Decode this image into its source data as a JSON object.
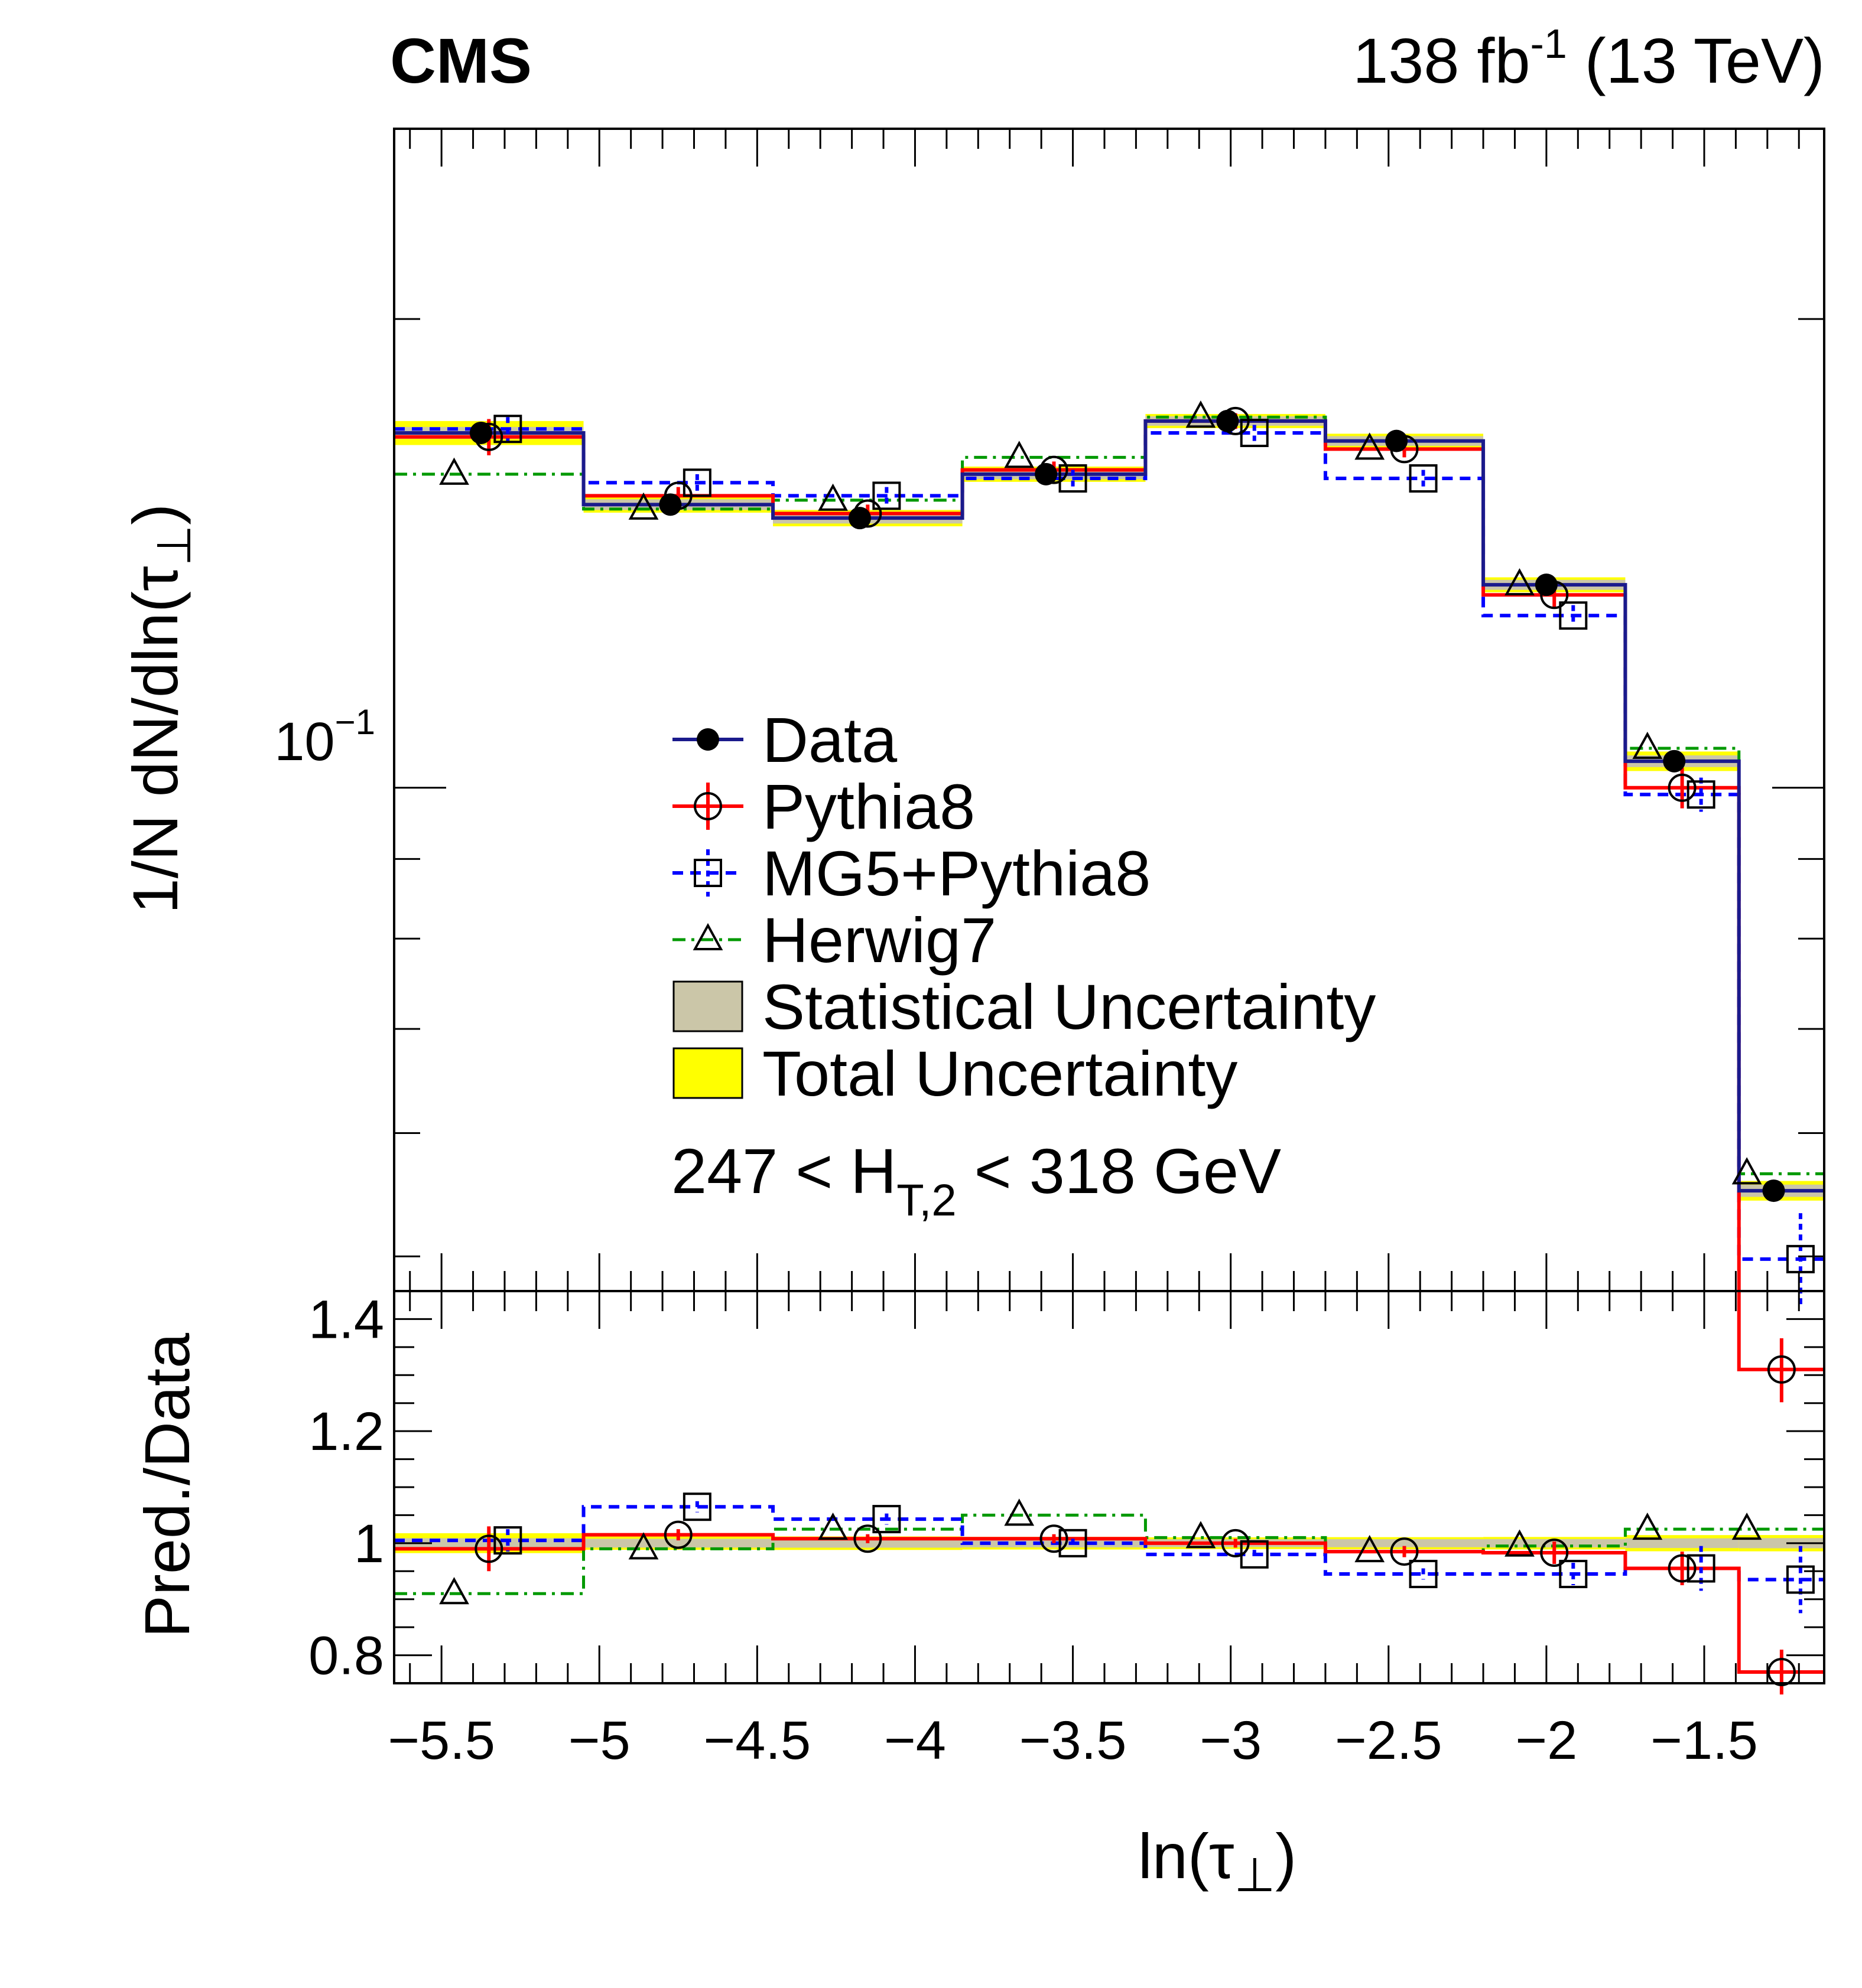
{
  "header": {
    "experiment": "CMS",
    "lumi_value": "138 fb",
    "lumi_exponent": "-1",
    "energy": "(13 TeV)"
  },
  "chart_data": {
    "type": "line",
    "style": "histogram-step",
    "title": "",
    "xlabel_main": "ln(τ",
    "xlabel_sub": "⊥",
    "xlabel_close": ")",
    "ylabel_main": "1/N dN/dln(τ",
    "ylabel_sub": "⊥",
    "ylabel_close": ")",
    "ratio_ylabel": "Pred./Data",
    "bin_edges": [
      -5.65,
      -5.05,
      -4.45,
      -3.85,
      -3.27,
      -2.7,
      -2.2,
      -1.75,
      -1.39,
      -1.12
    ],
    "x_ticks": [
      -5.5,
      -5,
      -4.5,
      -4,
      -3.5,
      -3,
      -2.5,
      -2
    ],
    "x_tick_labels": [
      "−5.5",
      "−5",
      "−4.5",
      "−4",
      "−3.5",
      "−3",
      "−2.5",
      "−2"
    ],
    "x_tick_last": -1.5,
    "x_tick_last_label": "−1.5",
    "xlim": [
      -5.65,
      -1.12
    ],
    "ylim": [
      0.0475,
      0.265
    ],
    "ylog": true,
    "y_tick_label_base": "10",
    "y_tick_label_exp": "−1",
    "ratio_ylim": [
      0.75,
      1.45
    ],
    "ratio_ticks": [
      0.8,
      1.2,
      1.4
    ],
    "ratio_tick_labels": [
      "0.8",
      "1.2",
      "1.4"
    ],
    "ratio_tick_one": 1.0,
    "ratio_tick_one_label": "1",
    "grid": false,
    "legend_position": "center",
    "annotation": {
      "pre": "247 < H",
      "sub": "T,2",
      "post": " < 318 GeV"
    },
    "series": [
      {
        "name": "Data",
        "color": "#1a1a8c",
        "marker": "filled-circle",
        "values": [
          0.169,
          0.152,
          0.149,
          0.159,
          0.172,
          0.167,
          0.135,
          0.104,
          0.0551
        ],
        "stat_unc": [
          0.0015,
          0.0012,
          0.0012,
          0.0012,
          0.0012,
          0.0012,
          0.001,
          0.0009,
          0.0005
        ],
        "tot_unc": [
          0.003,
          0.0018,
          0.0018,
          0.0018,
          0.0018,
          0.0018,
          0.0015,
          0.0015,
          0.0008
        ]
      },
      {
        "name": "Pythia8",
        "color": "#ff0000",
        "marker": "open-circle",
        "values": [
          0.168,
          0.154,
          0.15,
          0.16,
          0.172,
          0.165,
          0.133,
          0.1,
          0.0423
        ],
        "errors": [
          0.0045,
          0.002,
          0.002,
          0.002,
          0.002,
          0.002,
          0.0025,
          0.003,
          0.002
        ],
        "ratio": [
          0.99,
          1.015,
          1.008,
          1.008,
          1.0,
          0.985,
          0.983,
          0.955,
          0.77
        ],
        "ratio_err": [
          0.04,
          0.01,
          0.008,
          0.008,
          0.008,
          0.01,
          0.02,
          0.03,
          0.04
        ]
      },
      {
        "name": "MG5+Pythia8",
        "color": "#0000ff",
        "marker": "open-square",
        "values": [
          0.17,
          0.157,
          0.154,
          0.158,
          0.169,
          0.158,
          0.129,
          0.099,
          0.0498
        ],
        "errors": [
          0.003,
          0.002,
          0.002,
          0.002,
          0.002,
          0.002,
          0.002,
          0.0025,
          0.0035
        ],
        "ratio": [
          1.005,
          1.065,
          1.043,
          1.0,
          0.98,
          0.945,
          0.945,
          0.955,
          0.935
        ],
        "ratio_err": [
          0.02,
          0.01,
          0.01,
          0.008,
          0.008,
          0.01,
          0.02,
          0.04,
          0.06
        ]
      },
      {
        "name": "Herwig7",
        "color": "#009900",
        "marker": "open-triangle",
        "values": [
          0.159,
          0.151,
          0.153,
          0.163,
          0.173,
          0.165,
          0.135,
          0.106,
          0.0565
        ],
        "errors": [
          0.0,
          0.0,
          0.0,
          0.0,
          0.0,
          0.0,
          0.0,
          0.0,
          0.0
        ],
        "ratio": [
          0.91,
          0.99,
          1.025,
          1.05,
          1.01,
          0.985,
          0.995,
          1.025,
          1.025
        ],
        "ratio_err": [
          0,
          0,
          0,
          0,
          0,
          0,
          0,
          0,
          0
        ]
      }
    ],
    "bands": [
      {
        "name": "Statistical Uncertainty",
        "color": "#cbc6a8"
      },
      {
        "name": "Total Uncertainty",
        "color": "#ffff00"
      }
    ]
  }
}
